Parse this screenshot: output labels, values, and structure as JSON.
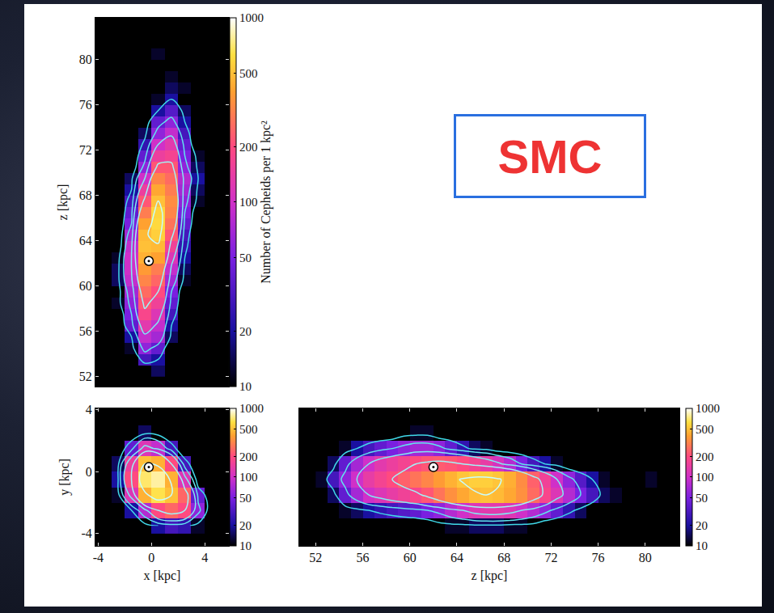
{
  "annotation": "SMC",
  "chart_data": [
    {
      "type": "heatmap",
      "log": true,
      "ylabel": "z [kpc]",
      "x": [
        -3.5,
        -2.5,
        -1.5,
        -0.5,
        0.5,
        1.5,
        2.5,
        3.5,
        4.5
      ],
      "y": [
        52.5,
        53.5,
        54.5,
        55.5,
        56.5,
        57.5,
        58.5,
        59.5,
        60.5,
        61.5,
        62.5,
        63.5,
        64.5,
        65.5,
        66.5,
        67.5,
        68.5,
        69.5,
        70.5,
        71.5,
        72.5,
        73.5,
        74.5,
        75.5,
        76.5,
        77.5,
        78.5,
        79.5,
        80.5
      ],
      "cells": [
        [
          0,
          0,
          0,
          0,
          15,
          0,
          0,
          0,
          0
        ],
        [
          0,
          0,
          0,
          30,
          20,
          0,
          0,
          0,
          0
        ],
        [
          0,
          0,
          12,
          60,
          40,
          0,
          0,
          0,
          0
        ],
        [
          0,
          0,
          20,
          90,
          70,
          15,
          0,
          0,
          0
        ],
        [
          0,
          0,
          40,
          130,
          90,
          20,
          0,
          0,
          0
        ],
        [
          0,
          0,
          50,
          180,
          120,
          30,
          0,
          0,
          0
        ],
        [
          0,
          12,
          60,
          220,
          160,
          40,
          0,
          0,
          0
        ],
        [
          0,
          10,
          70,
          260,
          200,
          50,
          0,
          0,
          0
        ],
        [
          0,
          15,
          90,
          320,
          250,
          70,
          12,
          0,
          0
        ],
        [
          0,
          15,
          100,
          380,
          300,
          90,
          15,
          0,
          0
        ],
        [
          0,
          12,
          100,
          450,
          400,
          120,
          20,
          0,
          0
        ],
        [
          0,
          0,
          90,
          500,
          480,
          160,
          25,
          0,
          0
        ],
        [
          0,
          0,
          70,
          480,
          560,
          220,
          30,
          0,
          0
        ],
        [
          0,
          0,
          50,
          400,
          600,
          280,
          40,
          0,
          0
        ],
        [
          0,
          0,
          40,
          300,
          580,
          320,
          50,
          0,
          0
        ],
        [
          0,
          0,
          30,
          220,
          500,
          340,
          60,
          12,
          0
        ],
        [
          0,
          0,
          20,
          150,
          420,
          300,
          70,
          15,
          0
        ],
        [
          0,
          0,
          15,
          100,
          320,
          260,
          80,
          20,
          0
        ],
        [
          0,
          0,
          0,
          60,
          220,
          220,
          60,
          15,
          0
        ],
        [
          0,
          0,
          0,
          40,
          150,
          170,
          50,
          12,
          0
        ],
        [
          0,
          0,
          0,
          25,
          100,
          130,
          40,
          0,
          0
        ],
        [
          0,
          0,
          0,
          15,
          60,
          90,
          30,
          0,
          0
        ],
        [
          0,
          0,
          0,
          10,
          40,
          60,
          20,
          0,
          0
        ],
        [
          0,
          0,
          0,
          0,
          20,
          35,
          15,
          0,
          0
        ],
        [
          0,
          0,
          0,
          0,
          12,
          20,
          0,
          0,
          0
        ],
        [
          0,
          0,
          0,
          0,
          0,
          15,
          12,
          0,
          0
        ],
        [
          0,
          0,
          0,
          0,
          0,
          12,
          0,
          0,
          0
        ],
        [
          0,
          0,
          0,
          0,
          0,
          0,
          10,
          0,
          0
        ],
        [
          0,
          0,
          0,
          0,
          12,
          0,
          0,
          0,
          0
        ]
      ],
      "xlim": [
        -4.2,
        5.8
      ],
      "ylim": [
        51.1,
        83.7
      ],
      "yticks": [
        52,
        56,
        60,
        64,
        68,
        72,
        76,
        80
      ],
      "tick_labels": "y",
      "colorbar": {
        "range": [
          10,
          1000
        ],
        "ticks": [
          10,
          20,
          50,
          100,
          200,
          500,
          1000
        ],
        "title": "Number of Cepheids per 1 kpc²"
      },
      "contours": [
        20,
        50,
        100,
        200,
        500
      ],
      "center": [
        -0.2,
        62.2
      ]
    },
    {
      "type": "heatmap",
      "log": true,
      "xlabel": "x [kpc]",
      "ylabel": "y [kpc]",
      "x": [
        -3.5,
        -2.5,
        -1.5,
        -0.5,
        0.5,
        1.5,
        2.5,
        3.5,
        4.5
      ],
      "y": [
        -3.5,
        -2.5,
        -1.5,
        -0.5,
        0.5,
        1.5,
        2.5,
        3.5
      ],
      "cells": [
        [
          0,
          0,
          0,
          10,
          20,
          30,
          25,
          12,
          0
        ],
        [
          0,
          0,
          20,
          80,
          200,
          250,
          200,
          60,
          0
        ],
        [
          0,
          12,
          120,
          450,
          650,
          500,
          250,
          40,
          0
        ],
        [
          0,
          20,
          200,
          700,
          800,
          450,
          120,
          0,
          0
        ],
        [
          0,
          15,
          150,
          500,
          450,
          200,
          30,
          0,
          0
        ],
        [
          0,
          0,
          40,
          120,
          90,
          30,
          0,
          0,
          0
        ],
        [
          0,
          0,
          0,
          15,
          10,
          0,
          0,
          0,
          0
        ],
        [
          0,
          0,
          0,
          0,
          0,
          0,
          0,
          0,
          0
        ]
      ],
      "xlim": [
        -4.2,
        5.8
      ],
      "ylim": [
        -4.8,
        4.1
      ],
      "xticks": [
        -4,
        0,
        4
      ],
      "yticks": [
        -4,
        0,
        4
      ],
      "tick_labels": true,
      "colorbar": {
        "range": [
          10,
          1000
        ],
        "ticks": [
          10,
          20,
          50,
          100,
          200,
          500,
          1000
        ]
      },
      "contours": [
        20,
        50,
        100,
        200,
        500
      ],
      "center": [
        -0.2,
        0.3
      ]
    },
    {
      "type": "heatmap",
      "log": true,
      "xlabel": "z [kpc]",
      "x": [
        52.5,
        53.5,
        54.5,
        55.5,
        56.5,
        57.5,
        58.5,
        59.5,
        60.5,
        61.5,
        62.5,
        63.5,
        64.5,
        65.5,
        66.5,
        67.5,
        68.5,
        69.5,
        70.5,
        71.5,
        72.5,
        73.5,
        74.5,
        75.5,
        76.5,
        77.5,
        78.5,
        79.5,
        80.5
      ],
      "y": [
        -3.5,
        -2.5,
        -1.5,
        -0.5,
        0.5,
        1.5,
        2.5,
        3.5
      ],
      "cells": [
        [
          0,
          0,
          0,
          0,
          0,
          0,
          0,
          0,
          0,
          0,
          10,
          12,
          12,
          15,
          15,
          15,
          12,
          12,
          10,
          0,
          0,
          0,
          0,
          0,
          0,
          0,
          0,
          0,
          0
        ],
        [
          0,
          0,
          12,
          15,
          20,
          25,
          30,
          35,
          40,
          50,
          60,
          80,
          100,
          120,
          130,
          130,
          120,
          100,
          80,
          60,
          40,
          25,
          15,
          10,
          0,
          0,
          0,
          0,
          0
        ],
        [
          0,
          15,
          40,
          70,
          100,
          120,
          140,
          160,
          180,
          220,
          280,
          350,
          420,
          480,
          500,
          480,
          420,
          350,
          260,
          180,
          120,
          80,
          50,
          30,
          15,
          12,
          0,
          0,
          0
        ],
        [
          12,
          30,
          60,
          100,
          140,
          170,
          200,
          240,
          280,
          320,
          380,
          450,
          520,
          560,
          560,
          520,
          440,
          340,
          240,
          160,
          100,
          60,
          35,
          20,
          12,
          0,
          0,
          0,
          12
        ],
        [
          0,
          15,
          40,
          70,
          100,
          130,
          150,
          170,
          200,
          220,
          230,
          220,
          200,
          170,
          140,
          110,
          80,
          50,
          30,
          20,
          12,
          0,
          0,
          0,
          0,
          0,
          0,
          0,
          0
        ],
        [
          0,
          0,
          12,
          20,
          30,
          40,
          50,
          60,
          70,
          70,
          60,
          40,
          25,
          15,
          12,
          0,
          0,
          0,
          0,
          0,
          0,
          0,
          0,
          0,
          0,
          0,
          0,
          0,
          0
        ],
        [
          0,
          0,
          0,
          0,
          0,
          0,
          0,
          10,
          12,
          12,
          0,
          0,
          0,
          0,
          0,
          0,
          0,
          0,
          0,
          0,
          0,
          0,
          0,
          0,
          0,
          0,
          0,
          0,
          0
        ],
        [
          0,
          0,
          0,
          0,
          0,
          0,
          0,
          0,
          0,
          0,
          0,
          0,
          0,
          0,
          0,
          0,
          0,
          0,
          0,
          0,
          0,
          0,
          0,
          0,
          0,
          0,
          0,
          0,
          0
        ]
      ],
      "xlim": [
        50.6,
        82.9
      ],
      "ylim": [
        -4.8,
        4.1
      ],
      "xticks": [
        52,
        56,
        60,
        64,
        68,
        72,
        76,
        80
      ],
      "tick_labels": "x",
      "colorbar": {
        "range": [
          10,
          1000
        ],
        "ticks": [
          10,
          20,
          50,
          100,
          200,
          500,
          1000
        ]
      },
      "contours": [
        20,
        50,
        100,
        200,
        500
      ],
      "center": [
        62.0,
        0.3
      ]
    }
  ]
}
